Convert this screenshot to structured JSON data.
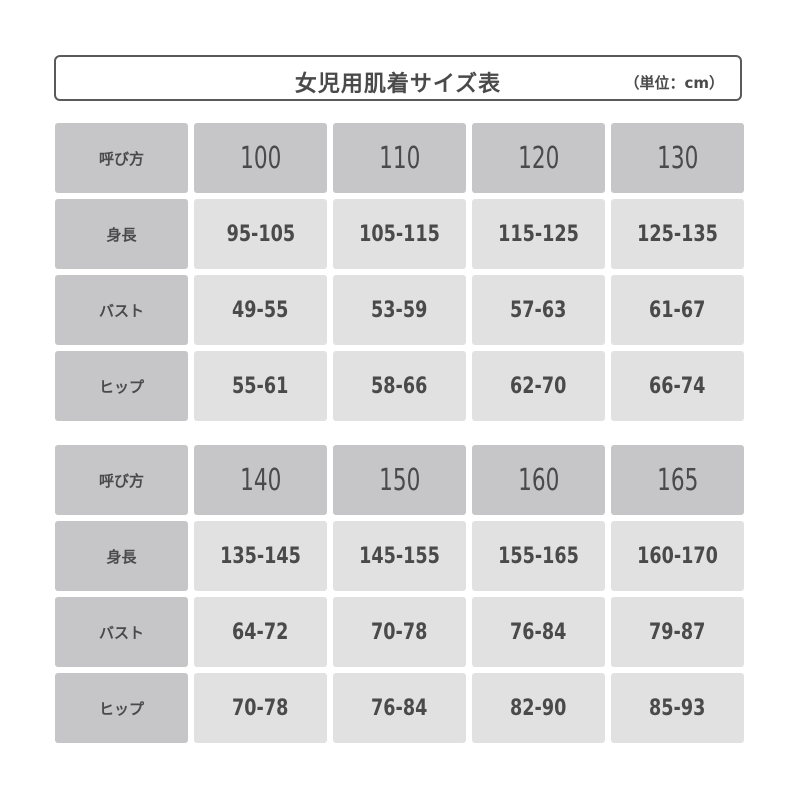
{
  "title": "女児用肌着サイズ表",
  "unit": "（単位：cm）",
  "tables": [
    {
      "rows": [
        {
          "label": "呼び方",
          "values": [
            "100",
            "110",
            "120",
            "130"
          ]
        },
        {
          "label": "身長",
          "values": [
            "95-105",
            "105-115",
            "115-125",
            "125-135"
          ]
        },
        {
          "label": "バスト",
          "values": [
            "49-55",
            "53-59",
            "57-63",
            "61-67"
          ]
        },
        {
          "label": "ヒップ",
          "values": [
            "55-61",
            "58-66",
            "62-70",
            "66-74"
          ]
        }
      ]
    },
    {
      "rows": [
        {
          "label": "呼び方",
          "values": [
            "140",
            "150",
            "160",
            "165"
          ]
        },
        {
          "label": "身長",
          "values": [
            "135-145",
            "145-155",
            "155-165",
            "160-170"
          ]
        },
        {
          "label": "バスト",
          "values": [
            "64-72",
            "70-78",
            "76-84",
            "79-87"
          ]
        },
        {
          "label": "ヒップ",
          "values": [
            "70-78",
            "76-84",
            "82-90",
            "85-93"
          ]
        }
      ]
    }
  ],
  "colors": {
    "header_cell": "#c6c6c8",
    "value_cell": "#e1e1e1",
    "text": "#4a4a4a"
  }
}
